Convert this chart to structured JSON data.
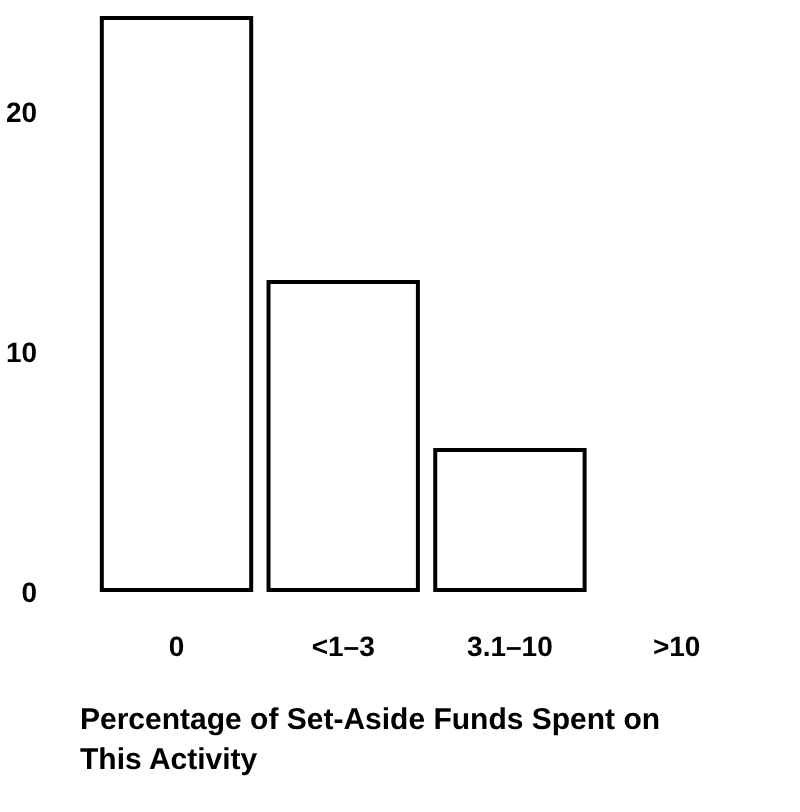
{
  "chart_data": {
    "type": "bar",
    "xlabel": "Percentage of Set-Aside Funds Spent on This Activity",
    "categories": [
      "0",
      "<1–3",
      "3.1–10",
      ">10"
    ],
    "values": [
      24,
      13,
      6,
      0
    ],
    "color": "#ffffff",
    "ylim": [
      0,
      24
    ],
    "yticks": [
      0,
      10,
      20
    ],
    "grid": false
  }
}
